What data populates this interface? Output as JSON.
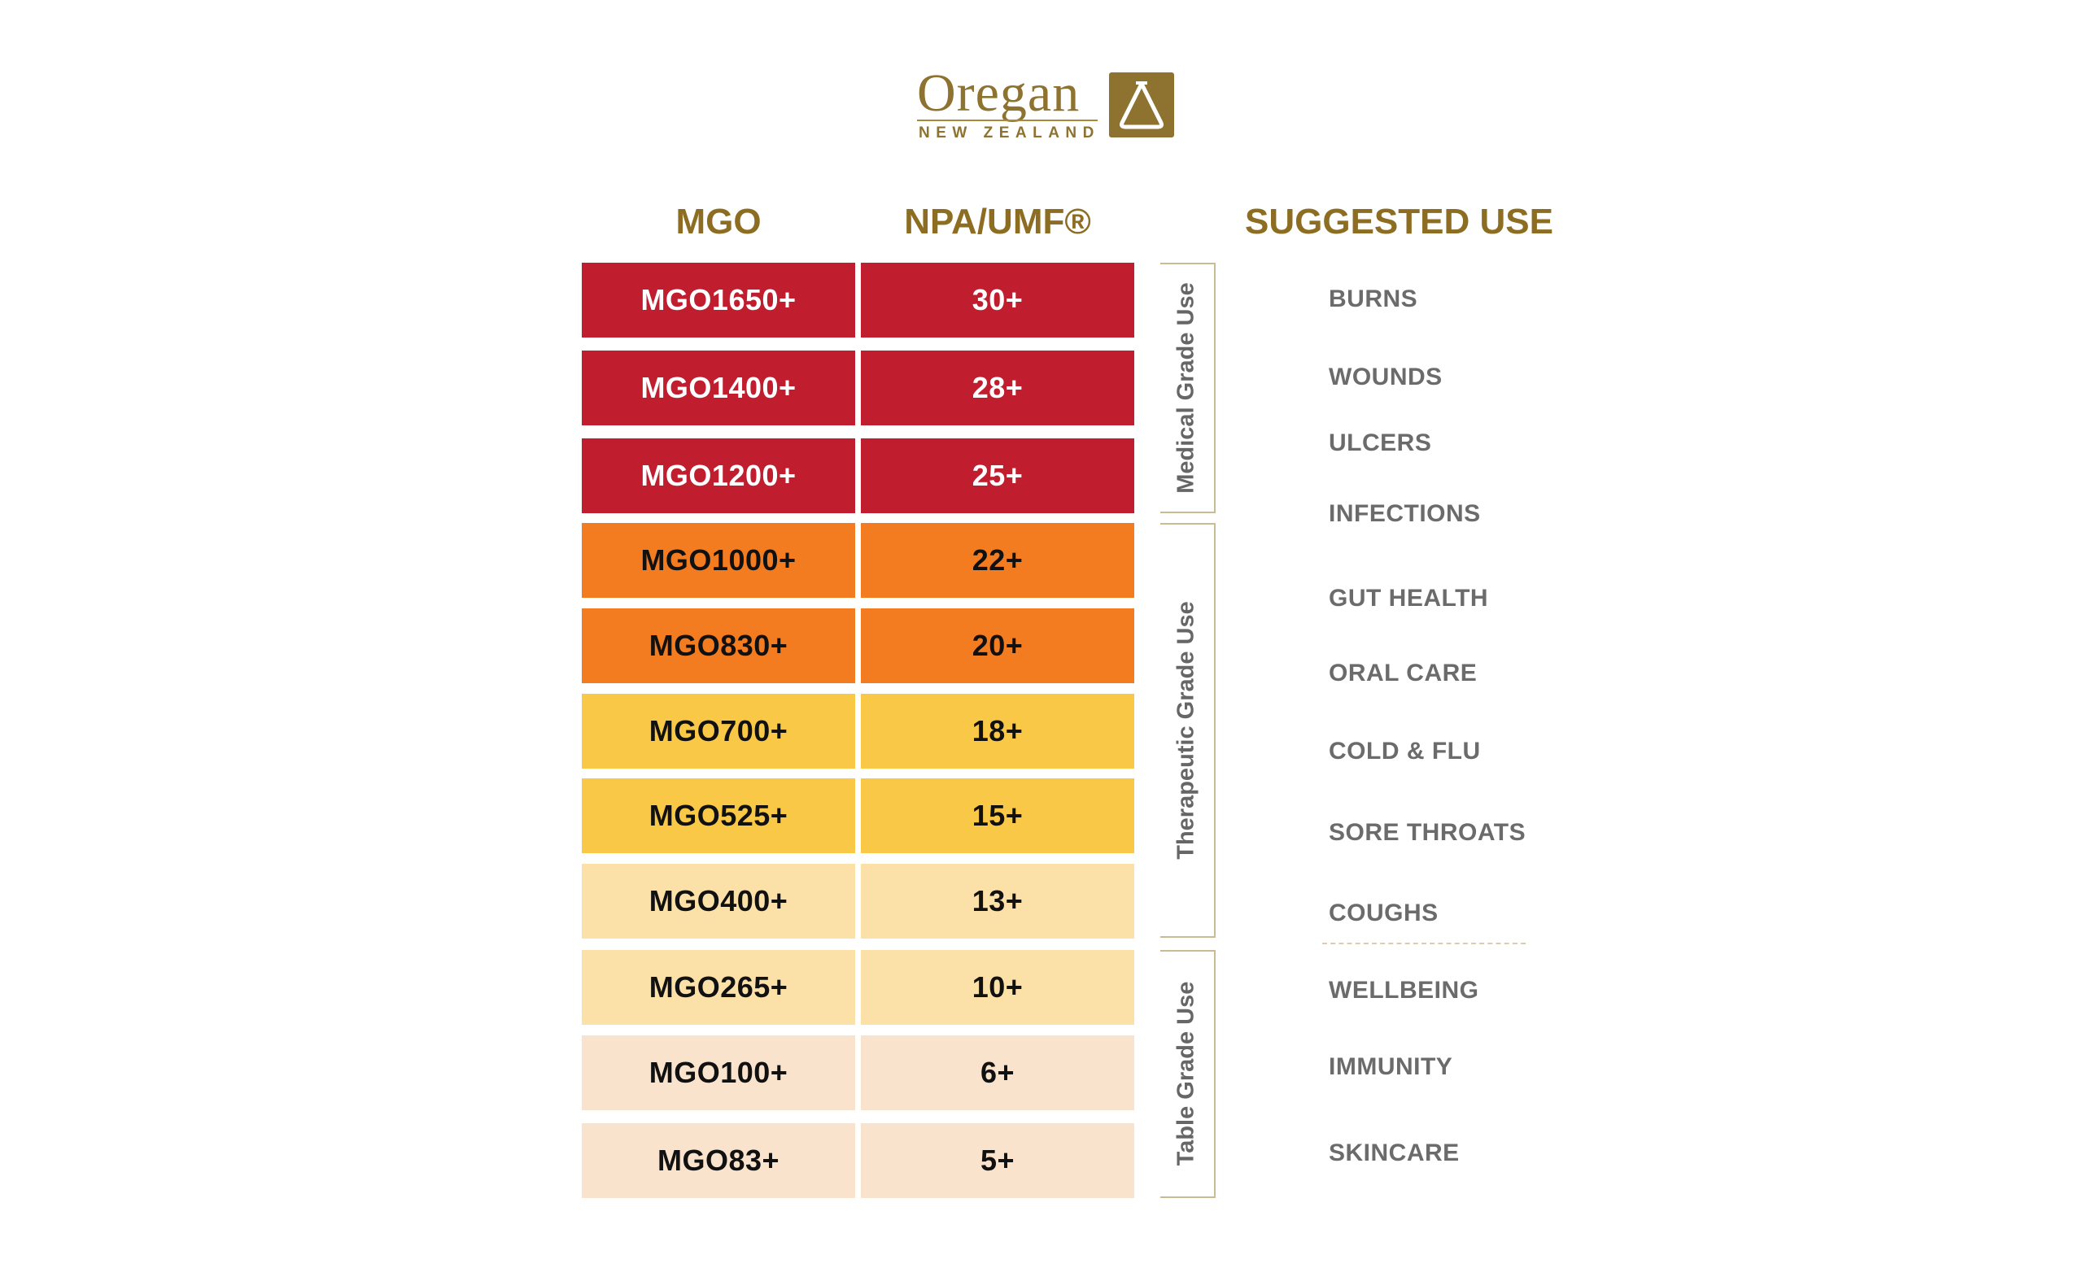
{
  "logo": {
    "wordmark": "Oregan",
    "subtitle": "NEW ZEALAND",
    "mark_icon": "conical-flask-icon",
    "color": "#8e7230"
  },
  "headers": {
    "mgo": "MGO",
    "npa_umf": "NPA/UMF®",
    "suggested_use": "SUGGESTED USE"
  },
  "colors": {
    "header_gold": "#8c6d22",
    "medical_red": "#c01e2e",
    "therapeutic_orange": "#f47c20",
    "therapeutic_yellow": "#f9c846",
    "pale_yellow": "#fbe0a8",
    "table_peach": "#fae3cc",
    "use_text": "#6b6b6b"
  },
  "rows": [
    {
      "mgo": "MGO1650+",
      "npa": "30+"
    },
    {
      "mgo": "MGO1400+",
      "npa": "28+"
    },
    {
      "mgo": "MGO1200+",
      "npa": "25+"
    },
    {
      "mgo": "MGO1000+",
      "npa": "22+"
    },
    {
      "mgo": "MGO830+",
      "npa": "20+"
    },
    {
      "mgo": "MGO700+",
      "npa": "18+"
    },
    {
      "mgo": "MGO525+",
      "npa": "15+"
    },
    {
      "mgo": "MGO400+",
      "npa": "13+"
    },
    {
      "mgo": "MGO265+",
      "npa": "10+"
    },
    {
      "mgo": "MGO100+",
      "npa": "6+"
    },
    {
      "mgo": "MGO83+",
      "npa": "5+"
    }
  ],
  "grades": {
    "medical": "Medical Grade Use",
    "therapeutic": "Therapeutic Grade Use",
    "table": "Table Grade Use"
  },
  "uses": [
    "BURNS",
    "WOUNDS",
    "ULCERS",
    "INFECTIONS",
    "GUT HEALTH",
    "ORAL CARE",
    "COLD & FLU",
    "SORE THROATS",
    "COUGHS",
    "WELLBEING",
    "IMMUNITY",
    "SKINCARE"
  ]
}
